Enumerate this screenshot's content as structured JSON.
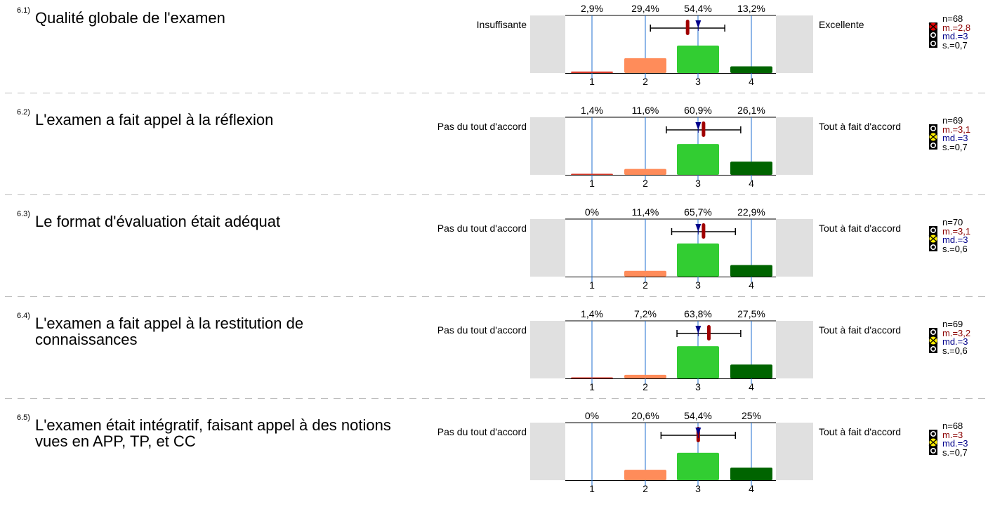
{
  "colors": {
    "c1": "#d93a2a",
    "c2": "#ff8c5a",
    "c3": "#32cd32",
    "c4": "#006400",
    "gridline": "#1f6fd1",
    "side_box": "#e0e0e0",
    "mean_marker": "#a00000",
    "median_marker": "#00008b"
  },
  "questions": [
    {
      "num": "6.1)",
      "text": "Qualité globale de l'examen",
      "left_label": "Insuffisante",
      "right_label": "Excellente",
      "n": "n=68",
      "m": "m.=2,8",
      "md": "md.=3",
      "s": "s.=0,7",
      "light": "red",
      "chart_data": {
        "type": "bar",
        "categories": [
          "1",
          "2",
          "3",
          "4"
        ],
        "values": [
          2.9,
          29.4,
          54.4,
          13.2
        ],
        "value_labels": [
          "2,9%",
          "29,4%",
          "54,4%",
          "13,2%"
        ],
        "mean": 2.8,
        "median": 3,
        "sd": 0.7
      }
    },
    {
      "num": "6.2)",
      "text": "L'examen a fait appel à la réflexion",
      "left_label": "Pas du tout d'accord",
      "right_label": "Tout à fait d'accord",
      "n": "n=69",
      "m": "m.=3,1",
      "md": "md.=3",
      "s": "s.=0,7",
      "light": "yellow",
      "chart_data": {
        "type": "bar",
        "categories": [
          "1",
          "2",
          "3",
          "4"
        ],
        "values": [
          1.4,
          11.6,
          60.9,
          26.1
        ],
        "value_labels": [
          "1,4%",
          "11,6%",
          "60,9%",
          "26,1%"
        ],
        "mean": 3.1,
        "median": 3,
        "sd": 0.7
      }
    },
    {
      "num": "6.3)",
      "text": "Le format d'évaluation était adéquat",
      "left_label": "Pas du tout d'accord",
      "right_label": "Tout à fait d'accord",
      "n": "n=70",
      "m": "m.=3,1",
      "md": "md.=3",
      "s": "s.=0,6",
      "light": "yellow",
      "chart_data": {
        "type": "bar",
        "categories": [
          "1",
          "2",
          "3",
          "4"
        ],
        "values": [
          0,
          11.4,
          65.7,
          22.9
        ],
        "value_labels": [
          "0%",
          "11,4%",
          "65,7%",
          "22,9%"
        ],
        "mean": 3.1,
        "median": 3,
        "sd": 0.6
      }
    },
    {
      "num": "6.4)",
      "text": "L'examen a fait appel à la restitution de connaissances",
      "left_label": "Pas du tout d'accord",
      "right_label": "Tout à fait d'accord",
      "n": "n=69",
      "m": "m.=3,2",
      "md": "md.=3",
      "s": "s.=0,6",
      "light": "yellow",
      "chart_data": {
        "type": "bar",
        "categories": [
          "1",
          "2",
          "3",
          "4"
        ],
        "values": [
          1.4,
          7.2,
          63.8,
          27.5
        ],
        "value_labels": [
          "1,4%",
          "7,2%",
          "63,8%",
          "27,5%"
        ],
        "mean": 3.2,
        "median": 3,
        "sd": 0.6
      }
    },
    {
      "num": "6.5)",
      "text": "L'examen était intégratif, faisant appel à des notions vues en APP, TP, et CC",
      "left_label": "Pas du tout d'accord",
      "right_label": "Tout à fait d'accord",
      "n": "n=68",
      "m": "m.=3",
      "md": "md.=3",
      "s": "s.=0,7",
      "light": "yellow",
      "chart_data": {
        "type": "bar",
        "categories": [
          "1",
          "2",
          "3",
          "4"
        ],
        "values": [
          0,
          20.6,
          54.4,
          25
        ],
        "value_labels": [
          "0%",
          "20,6%",
          "54,4%",
          "25%"
        ],
        "mean": 3.0,
        "median": 3,
        "sd": 0.7
      }
    }
  ]
}
